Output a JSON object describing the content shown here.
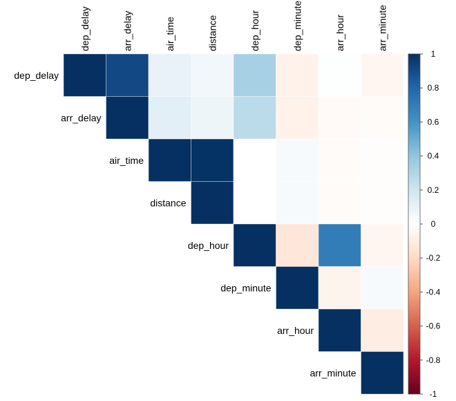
{
  "chart_data": {
    "type": "heatmap",
    "subtype": "correlation-matrix-upper",
    "variables": [
      "dep_delay",
      "arr_delay",
      "air_time",
      "distance",
      "dep_hour",
      "dep_minute",
      "arr_hour",
      "arr_minute"
    ],
    "matrix": [
      [
        1,
        0.91,
        0.1,
        0.06,
        0.33,
        -0.07,
        0.01,
        -0.05
      ],
      [
        null,
        1,
        0.12,
        0.08,
        0.27,
        -0.07,
        -0.03,
        -0.02
      ],
      [
        null,
        null,
        1,
        0.99,
        0.0,
        0.04,
        -0.02,
        -0.01
      ],
      [
        null,
        null,
        null,
        1,
        0.0,
        0.04,
        -0.02,
        -0.01
      ],
      [
        null,
        null,
        null,
        null,
        1,
        -0.14,
        0.7,
        -0.05
      ],
      [
        null,
        null,
        null,
        null,
        null,
        1,
        -0.06,
        0.04
      ],
      [
        null,
        null,
        null,
        null,
        null,
        null,
        1,
        -0.1
      ],
      [
        null,
        null,
        null,
        null,
        null,
        null,
        null,
        1
      ]
    ],
    "colorbar": {
      "range": [
        -1,
        1
      ],
      "ticks": [
        "1",
        "0.8",
        "0.6",
        "0.4",
        "0.2",
        "0",
        "-0.2",
        "-0.4",
        "-0.6",
        "-0.8",
        "-1"
      ],
      "palette": [
        "#67001F",
        "#B2182B",
        "#D6604D",
        "#F4A582",
        "#FDDBC7",
        "#FFFFFF",
        "#D1E5F0",
        "#92C5DE",
        "#4393C3",
        "#2166AC",
        "#053061"
      ]
    },
    "legend_placement": "right"
  }
}
